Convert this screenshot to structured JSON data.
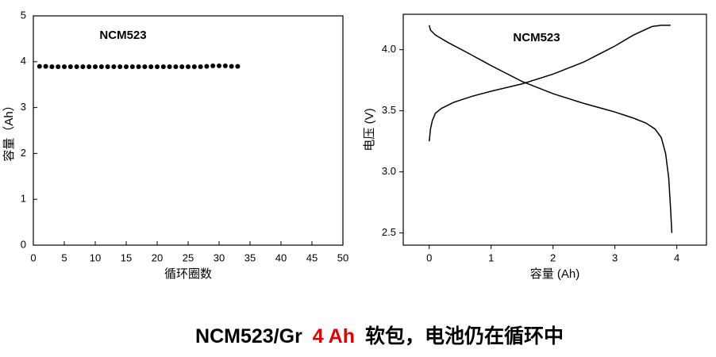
{
  "chart_data": [
    {
      "type": "scatter",
      "annotation": "NCM523",
      "xlabel": "循环圈数",
      "ylabel": "容量（Ah）",
      "color": "#000000",
      "x": [
        1,
        2,
        3,
        4,
        5,
        6,
        7,
        8,
        9,
        10,
        11,
        12,
        13,
        14,
        15,
        16,
        17,
        18,
        19,
        20,
        21,
        22,
        23,
        24,
        25,
        26,
        27,
        28,
        29,
        30,
        31,
        32,
        33
      ],
      "values": [
        3.9,
        3.9,
        3.89,
        3.89,
        3.89,
        3.89,
        3.89,
        3.89,
        3.89,
        3.89,
        3.89,
        3.89,
        3.89,
        3.89,
        3.89,
        3.89,
        3.89,
        3.89,
        3.89,
        3.89,
        3.89,
        3.89,
        3.89,
        3.89,
        3.89,
        3.89,
        3.89,
        3.9,
        3.91,
        3.91,
        3.91,
        3.9,
        3.9
      ],
      "xlim": [
        0,
        50
      ],
      "xticks": [
        0,
        5,
        10,
        15,
        20,
        25,
        30,
        35,
        40,
        45,
        50
      ],
      "ylim": [
        0,
        5
      ],
      "yticks": [
        0,
        1,
        2,
        3,
        4,
        5
      ]
    },
    {
      "type": "line",
      "annotation": "NCM523",
      "xlabel": "容量 (Ah)",
      "ylabel": "电压 (V)",
      "series": [
        {
          "color": "#000000",
          "x": [
            0,
            0.02,
            0.05,
            0.1,
            0.2,
            0.4,
            0.7,
            1.0,
            1.5,
            2.0,
            2.5,
            3.0,
            3.3,
            3.6,
            3.75,
            3.8,
            3.9
          ],
          "values": [
            3.25,
            3.35,
            3.42,
            3.48,
            3.52,
            3.57,
            3.62,
            3.66,
            3.72,
            3.8,
            3.9,
            4.03,
            4.12,
            4.19,
            4.2,
            4.2,
            4.2
          ]
        },
        {
          "color": "#000000",
          "x": [
            0,
            0.02,
            0.1,
            0.3,
            0.6,
            1.0,
            1.5,
            2.0,
            2.5,
            3.0,
            3.3,
            3.5,
            3.65,
            3.75,
            3.82,
            3.87,
            3.9,
            3.92
          ],
          "values": [
            4.2,
            4.16,
            4.12,
            4.06,
            3.98,
            3.87,
            3.74,
            3.64,
            3.56,
            3.49,
            3.44,
            3.4,
            3.35,
            3.28,
            3.15,
            2.95,
            2.7,
            2.5
          ]
        }
      ],
      "xlim": [
        -0.42,
        4.48
      ],
      "xticks": [
        0,
        1,
        2,
        3,
        4
      ],
      "ylim": [
        2.4,
        4.29
      ],
      "yticks": [
        2.5,
        {
          "value": 3,
          "label": "3.0"
        },
        3.5,
        {
          "value": 4,
          "label": "4.0"
        }
      ]
    }
  ],
  "caption": [
    {
      "text": "NCM523/Gr",
      "color": "#000000"
    },
    {
      "text": "4 Ah",
      "color": "#e00000"
    },
    {
      "text": "软包，电池仍在循环中",
      "color": "#000000"
    }
  ]
}
